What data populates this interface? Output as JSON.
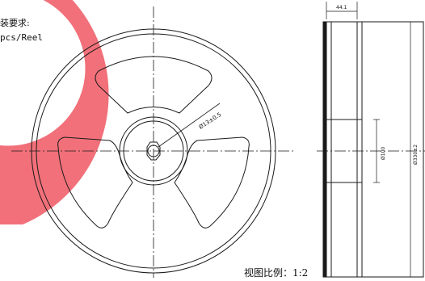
{
  "notes": {
    "line1": "装要求:",
    "line2": "pcs/Reel"
  },
  "dimensions": {
    "hub_diameter": "Ø13±0.5",
    "flange_width": "44.1",
    "hub_size": "Ø100",
    "reel_diameter": "Ø330±2"
  },
  "scale_label": "视图比例：1:2",
  "colors": {
    "line": "#1a1a1a",
    "watermark": "#f0606a",
    "background": "#ffffff"
  }
}
